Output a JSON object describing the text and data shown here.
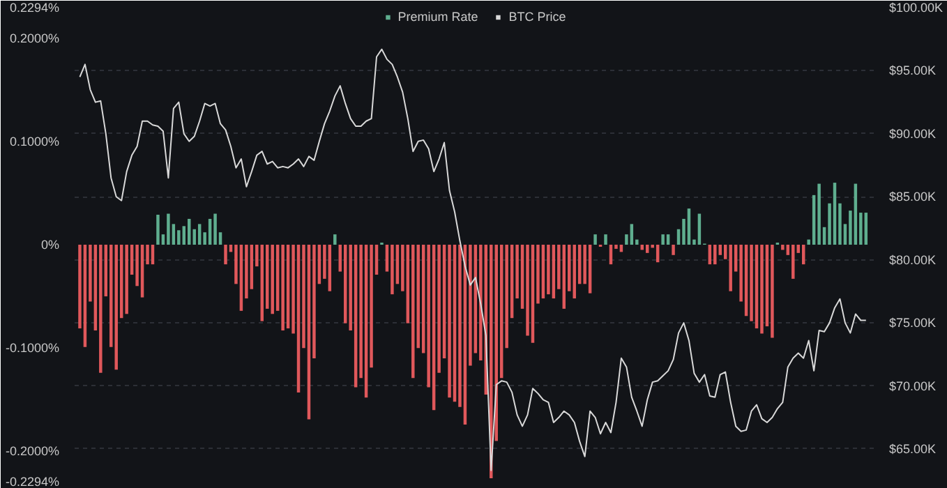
{
  "chart_data": {
    "type": "bar",
    "categories": [
      null,
      null,
      null,
      null,
      null,
      null,
      null,
      null,
      null,
      null,
      null,
      null,
      null,
      null,
      null,
      null,
      null,
      null,
      null,
      null,
      null,
      null,
      null,
      null,
      null,
      null,
      null,
      null,
      null,
      null,
      null,
      null,
      null,
      null,
      null,
      null,
      null,
      null,
      null,
      null,
      null,
      null,
      null,
      null,
      null,
      null,
      null,
      null,
      null,
      null,
      null,
      null,
      null,
      null,
      null,
      null,
      null,
      null,
      null,
      null,
      null,
      null,
      null,
      null,
      null,
      null,
      null,
      null,
      null,
      null,
      null,
      null,
      null,
      null,
      null,
      null,
      null,
      null,
      null,
      null,
      null,
      null,
      null,
      null,
      null,
      null,
      null,
      null,
      null,
      null,
      null,
      null,
      null,
      null,
      null,
      null,
      null,
      null,
      null,
      null,
      null,
      null,
      null,
      null,
      null,
      null,
      null,
      null,
      null,
      null,
      null,
      null,
      null,
      null,
      null,
      null,
      null,
      null,
      null,
      null,
      null,
      null,
      null,
      null,
      null,
      null,
      null,
      null,
      null,
      null,
      null,
      null,
      null,
      null,
      null,
      null,
      null,
      null,
      null,
      null,
      null,
      null,
      null,
      null,
      null,
      null,
      null,
      null,
      null,
      null,
      null,
      null
    ],
    "series": [
      {
        "name": "Premium Rate",
        "color": "#5fae8f",
        "values": [
          -0.081,
          -0.099,
          -0.055,
          -0.083,
          -0.124,
          -0.05,
          -0.099,
          -0.121,
          -0.071,
          -0.067,
          -0.029,
          -0.04,
          -0.051,
          -0.019,
          -0.019,
          0.029,
          0.01,
          0.03,
          0.02,
          0.014,
          0.018,
          0.025,
          0.015,
          0.02,
          0.012,
          0.025,
          0.03,
          0.012,
          -0.019,
          -0.007,
          -0.038,
          -0.064,
          -0.052,
          -0.043,
          -0.021,
          -0.074,
          -0.062,
          -0.067,
          -0.064,
          -0.083,
          -0.081,
          -0.086,
          -0.143,
          -0.1,
          -0.169,
          -0.11,
          -0.038,
          -0.033,
          -0.045,
          0.01,
          -0.026,
          -0.076,
          -0.083,
          -0.138,
          -0.129,
          -0.148,
          -0.119,
          -0.029,
          0.002,
          -0.026,
          -0.048,
          -0.038,
          -0.045,
          -0.076,
          -0.129,
          -0.1,
          -0.105,
          -0.138,
          -0.16,
          -0.124,
          -0.11,
          -0.148,
          -0.152,
          -0.157,
          -0.174,
          -0.117,
          -0.105,
          -0.112,
          -0.145,
          -0.226,
          -0.19,
          -0.129,
          -0.1,
          -0.071,
          -0.052,
          -0.062,
          -0.088,
          -0.095,
          -0.057,
          -0.052,
          -0.048,
          -0.052,
          -0.043,
          -0.062,
          -0.045,
          -0.052,
          -0.038,
          -0.038,
          -0.047,
          0.01,
          -0.002,
          0.01,
          -0.019,
          -0.004,
          -0.007,
          0.01,
          0.02,
          0.005,
          -0.005,
          -0.008,
          -0.003,
          -0.017,
          0.01,
          0.01,
          -0.01,
          0.015,
          0.025,
          0.035,
          0.005,
          0.03,
          0.001,
          -0.019,
          -0.019,
          -0.01,
          -0.014,
          -0.045,
          -0.026,
          -0.055,
          -0.069,
          -0.074,
          -0.081,
          -0.086,
          -0.079,
          -0.09,
          0.002,
          -0.005,
          -0.01,
          -0.033,
          -0.008,
          -0.019,
          0.005,
          0.048,
          0.059,
          0.017,
          0.04,
          0.06,
          0.04,
          0.02,
          0.033,
          0.059,
          0.031,
          0.031
        ],
        "colors": [
          "#e0585b",
          "#e0585b",
          "#e0585b",
          "#e0585b",
          "#e0585b",
          "#e0585b",
          "#e0585b",
          "#e0585b",
          "#e0585b",
          "#e0585b",
          "#e0585b",
          "#e0585b",
          "#e0585b",
          "#e0585b",
          "#e0585b",
          "#5fae8f",
          "#5fae8f",
          "#5fae8f",
          "#5fae8f",
          "#5fae8f",
          "#5fae8f",
          "#5fae8f",
          "#5fae8f",
          "#5fae8f",
          "#5fae8f",
          "#5fae8f",
          "#5fae8f",
          "#5fae8f",
          "#e0585b",
          "#e0585b",
          "#e0585b",
          "#e0585b",
          "#e0585b",
          "#e0585b",
          "#e0585b",
          "#e0585b",
          "#e0585b",
          "#e0585b",
          "#e0585b",
          "#e0585b",
          "#e0585b",
          "#e0585b",
          "#e0585b",
          "#e0585b",
          "#e0585b",
          "#e0585b",
          "#e0585b",
          "#e0585b",
          "#e0585b",
          "#5fae8f",
          "#e0585b",
          "#e0585b",
          "#e0585b",
          "#e0585b",
          "#e0585b",
          "#e0585b",
          "#e0585b",
          "#e0585b",
          "#5fae8f",
          "#e0585b",
          "#e0585b",
          "#e0585b",
          "#e0585b",
          "#e0585b",
          "#e0585b",
          "#e0585b",
          "#e0585b",
          "#e0585b",
          "#e0585b",
          "#e0585b",
          "#e0585b",
          "#e0585b",
          "#e0585b",
          "#e0585b",
          "#e0585b",
          "#e0585b",
          "#e0585b",
          "#e0585b",
          "#e0585b",
          "#e0585b",
          "#e0585b",
          "#e0585b",
          "#e0585b",
          "#e0585b",
          "#e0585b",
          "#e0585b",
          "#e0585b",
          "#e0585b",
          "#e0585b",
          "#e0585b",
          "#e0585b",
          "#e0585b",
          "#e0585b",
          "#e0585b",
          "#e0585b",
          "#e0585b",
          "#e0585b",
          "#e0585b",
          "#e0585b",
          "#5fae8f",
          "#e0585b",
          "#5fae8f",
          "#e0585b",
          "#e0585b",
          "#e0585b",
          "#5fae8f",
          "#5fae8f",
          "#5fae8f",
          "#e0585b",
          "#e0585b",
          "#e0585b",
          "#e0585b",
          "#5fae8f",
          "#5fae8f",
          "#e0585b",
          "#5fae8f",
          "#5fae8f",
          "#5fae8f",
          "#5fae8f",
          "#5fae8f",
          "#5fae8f",
          "#e0585b",
          "#e0585b",
          "#e0585b",
          "#e0585b",
          "#e0585b",
          "#e0585b",
          "#e0585b",
          "#e0585b",
          "#e0585b",
          "#e0585b",
          "#e0585b",
          "#e0585b",
          "#e0585b",
          "#5fae8f",
          "#e0585b",
          "#e0585b",
          "#e0585b",
          "#e0585b",
          "#e0585b",
          "#5fae8f",
          "#5fae8f",
          "#5fae8f",
          "#5fae8f",
          "#5fae8f",
          "#5fae8f",
          "#5fae8f",
          "#5fae8f",
          "#5fae8f",
          "#5fae8f",
          "#5fae8f",
          "#5fae8f"
        ]
      },
      {
        "name": "BTC Price",
        "type": "line",
        "axis": "y2",
        "color": "#d9d9d9",
        "values": [
          94500,
          95500,
          93500,
          92500,
          92600,
          90000,
          86500,
          85000,
          84700,
          87000,
          88300,
          89000,
          91000,
          91000,
          90700,
          90600,
          90200,
          86500,
          92000,
          92500,
          90000,
          89400,
          89800,
          91000,
          92400,
          92200,
          92400,
          90800,
          90300,
          89000,
          87300,
          88000,
          85800,
          87000,
          88300,
          88600,
          87600,
          87800,
          87300,
          87400,
          87300,
          87600,
          88000,
          87400,
          88200,
          87900,
          89400,
          90800,
          91800,
          93000,
          93800,
          92400,
          91200,
          90600,
          90600,
          91000,
          91200,
          96100,
          96700,
          95900,
          95500,
          94500,
          93300,
          91200,
          88600,
          89400,
          89500,
          88800,
          87000,
          88000,
          89300,
          85500,
          83800,
          81500,
          79500,
          78000,
          78600,
          76500,
          74000,
          63300,
          70100,
          70400,
          70300,
          69500,
          67700,
          66800,
          67700,
          69800,
          69400,
          68900,
          68700,
          67100,
          67500,
          68000,
          67700,
          67100,
          65600,
          64400,
          68000,
          67500,
          66200,
          67100,
          66300,
          68700,
          72200,
          71500,
          69100,
          68000,
          66800,
          68900,
          70300,
          70400,
          70800,
          71200,
          72100,
          74200,
          75000,
          73600,
          71000,
          70300,
          70900,
          69200,
          69100,
          70900,
          71100,
          68700,
          66800,
          66400,
          66500,
          68000,
          68500,
          67400,
          67100,
          67500,
          68200,
          68700,
          71500,
          72200,
          72600,
          72200,
          73600,
          71200,
          74400,
          74300,
          75000,
          76200,
          76900,
          75000,
          74200,
          75700,
          75200,
          75200
        ]
      }
    ],
    "ylim": [
      -0.2294,
      0.2294
    ],
    "yticks": [
      {
        "value": -0.2294,
        "label": "-0.2294%"
      },
      {
        "value": -0.2,
        "label": "-0.2000%"
      },
      {
        "value": -0.1,
        "label": "-0.1000%"
      },
      {
        "value": 0,
        "label": "0%"
      },
      {
        "value": 0.1,
        "label": "0.1000%"
      },
      {
        "value": 0.2,
        "label": "0.2000%"
      },
      {
        "value": 0.2294,
        "label": "0.2294%"
      }
    ],
    "y2lim": [
      62400,
      100000
    ],
    "y2ticks": [
      {
        "value": 65000,
        "label": "$65.00K"
      },
      {
        "value": 70000,
        "label": "$70.00K"
      },
      {
        "value": 75000,
        "label": "$75.00K"
      },
      {
        "value": 80000,
        "label": "$80.00K"
      },
      {
        "value": 85000,
        "label": "$85.00K"
      },
      {
        "value": 90000,
        "label": "$90.00K"
      },
      {
        "value": 95000,
        "label": "$95.00K"
      },
      {
        "value": 100000,
        "label": "$100.00K"
      }
    ],
    "tick_labels": "y",
    "grid": "y",
    "legend": "top"
  }
}
